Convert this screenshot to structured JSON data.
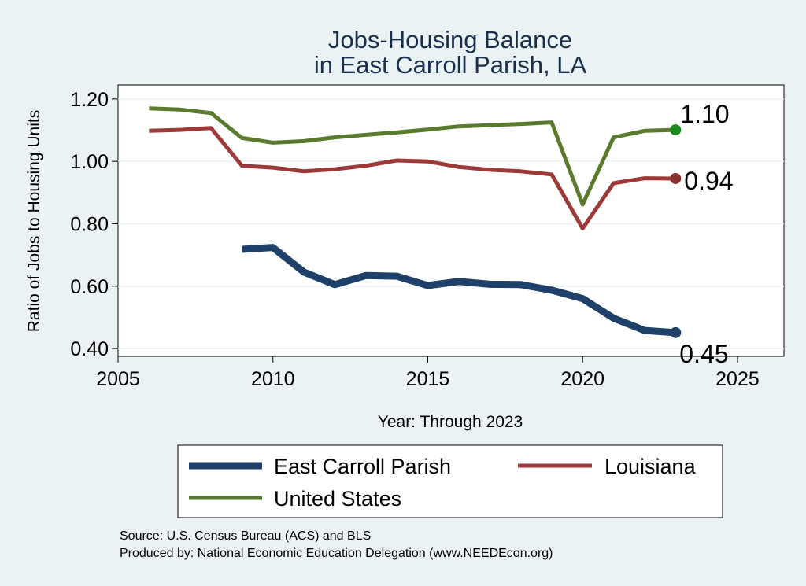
{
  "chart_data": {
    "type": "line",
    "title": [
      "Jobs-Housing Balance",
      "in East Carroll Parish, LA"
    ],
    "xlabel": "Year: Through 2023",
    "ylabel": "Ratio of Jobs to Housing Units",
    "xlim": [
      2005,
      2026.5
    ],
    "ylim": [
      0.375,
      1.245
    ],
    "xticks": [
      2005,
      2010,
      2015,
      2020,
      2025
    ],
    "yticks": [
      0.4,
      0.6,
      0.8,
      1.0,
      1.2
    ],
    "ytick_labels": [
      "0.40",
      "0.60",
      "0.80",
      "1.00",
      "1.20"
    ],
    "grid": true,
    "legend_position": "bottom",
    "series": [
      {
        "name": "United States",
        "color": "#5a7a2e",
        "end_marker_color": "#1a8a1a",
        "end_label": "1.10",
        "x": [
          2006,
          2007,
          2008,
          2009,
          2010,
          2011,
          2012,
          2013,
          2014,
          2015,
          2016,
          2017,
          2018,
          2019,
          2020,
          2021,
          2022,
          2023
        ],
        "values": [
          1.17,
          1.166,
          1.155,
          1.075,
          1.06,
          1.065,
          1.077,
          1.085,
          1.093,
          1.102,
          1.112,
          1.116,
          1.12,
          1.125,
          0.862,
          1.077,
          1.098,
          1.101
        ]
      },
      {
        "name": "Louisiana",
        "color": "#9c3a3a",
        "end_marker_color": "#8b2e2e",
        "end_label": "0.94",
        "x": [
          2006,
          2007,
          2008,
          2009,
          2010,
          2011,
          2012,
          2013,
          2014,
          2015,
          2016,
          2017,
          2018,
          2019,
          2020,
          2021,
          2022,
          2023
        ],
        "values": [
          1.098,
          1.101,
          1.107,
          0.986,
          0.98,
          0.968,
          0.975,
          0.986,
          1.003,
          1.0,
          0.982,
          0.973,
          0.968,
          0.958,
          0.785,
          0.93,
          0.946,
          0.945
        ]
      },
      {
        "name": "East Carroll Parish",
        "color": "#1f4068",
        "end_marker_color": "#1f4068",
        "end_label": "0.45",
        "x": [
          2009,
          2010,
          2011,
          2012,
          2013,
          2014,
          2015,
          2016,
          2017,
          2018,
          2019,
          2020,
          2021,
          2022,
          2023
        ],
        "values": [
          0.718,
          0.724,
          0.645,
          0.605,
          0.634,
          0.632,
          0.602,
          0.615,
          0.606,
          0.605,
          0.587,
          0.56,
          0.497,
          0.458,
          0.451
        ]
      }
    ],
    "source": "Source: U.S. Census Bureau (ACS) and BLS",
    "produced_by": "Produced by: National Economic Education Delegation (www.NEEDEcon.org)"
  }
}
